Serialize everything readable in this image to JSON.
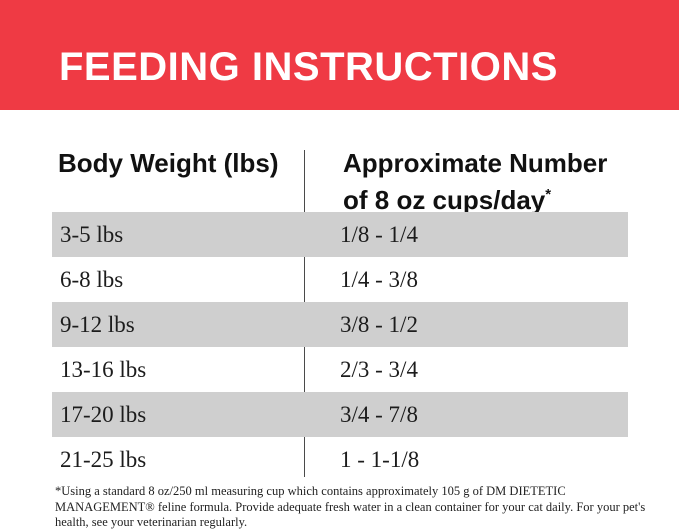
{
  "colors": {
    "banner_red": "#ef3a44",
    "row_gray": "#cfcfcf",
    "divider_gray": "#4a4a4a"
  },
  "banner": {
    "title": "FEEDING INSTRUCTIONS"
  },
  "table": {
    "col1_header": "Body Weight (lbs)",
    "col2_header_line1": "Approximate Number",
    "col2_header_line2": "of 8 oz cups/day",
    "col2_header_asterisk": "*",
    "rows": [
      {
        "weight": "3-5 lbs",
        "cups": "1/8 - 1/4"
      },
      {
        "weight": "6-8 lbs",
        "cups": "1/4 - 3/8"
      },
      {
        "weight": "9-12 lbs",
        "cups": "3/8 - 1/2"
      },
      {
        "weight": "13-16 lbs",
        "cups": "2/3 - 3/4"
      },
      {
        "weight": "17-20 lbs",
        "cups": "3/4 - 7/8"
      },
      {
        "weight": "21-25 lbs",
        "cups": "1 - 1-1/8"
      }
    ]
  },
  "footnote": "*Using a standard 8 oz/250 ml measuring cup which contains approximately 105 g of DM DIETETIC MANAGEMENT® feline formula. Provide adequate fresh water in a clean container for your cat daily. For your pet's health, see your veterinarian regularly."
}
